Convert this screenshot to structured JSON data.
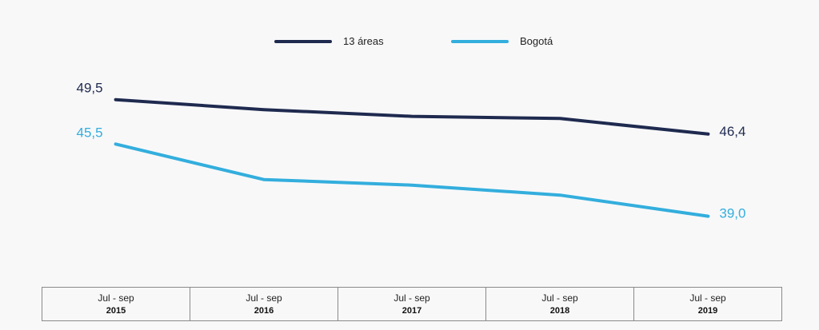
{
  "chart_data": {
    "type": "line",
    "categories": [
      {
        "period": "Jul - sep",
        "year": "2015"
      },
      {
        "period": "Jul - sep",
        "year": "2016"
      },
      {
        "period": "Jul - sep",
        "year": "2017"
      },
      {
        "period": "Jul - sep",
        "year": "2018"
      },
      {
        "period": "Jul - sep",
        "year": "2019"
      }
    ],
    "series": [
      {
        "name": "13 áreas",
        "color": "#1f2a4f",
        "values": [
          49.5,
          48.6,
          48.0,
          47.8,
          46.4
        ],
        "start_label": "49,5",
        "end_label": "46,4"
      },
      {
        "name": "Bogotá",
        "color": "#33aedd",
        "values": [
          45.5,
          42.3,
          41.8,
          40.9,
          39.0
        ],
        "start_label": "45,5",
        "end_label": "39,0"
      }
    ],
    "ylim": [
      34,
      52
    ],
    "legend_position": "top-center",
    "grid": false
  }
}
